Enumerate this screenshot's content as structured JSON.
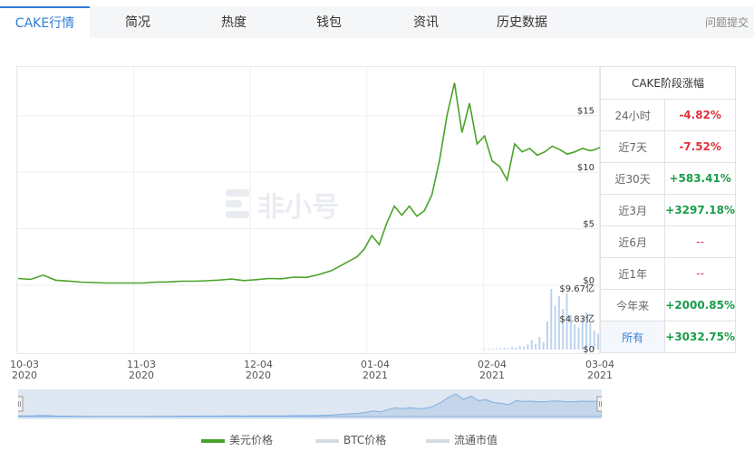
{
  "tabs": [
    {
      "label": "CAKE行情"
    },
    {
      "label": "简况"
    },
    {
      "label": "热度"
    },
    {
      "label": "钱包"
    },
    {
      "label": "资讯"
    },
    {
      "label": "历史数据"
    }
  ],
  "feedback_label": "问题提交",
  "watermark": "非小号",
  "table": {
    "title": "CAKE阶段涨幅",
    "rows": [
      {
        "label": "24小时",
        "value": "-4.82%"
      },
      {
        "label": "近7天",
        "value": "-7.52%"
      },
      {
        "label": "近30天",
        "value": "+583.41%"
      },
      {
        "label": "近3月",
        "value": "+3297.18%"
      },
      {
        "label": "近6月",
        "value": "--"
      },
      {
        "label": "近1年",
        "value": "--"
      },
      {
        "label": "今年来",
        "value": "+2000.85%"
      },
      {
        "label": "所有",
        "value": "+3032.75%"
      }
    ]
  },
  "colors": {
    "up": "#1a9c4a",
    "down": "#e0303b",
    "neutral": "#888888",
    "line": "#4aa329",
    "accent": "#2f7cd7"
  },
  "legend": [
    "美元价格",
    "BTC价格",
    "流通市值"
  ],
  "chart_data": {
    "type": "line",
    "x_ticks": [
      "10-03\n2020",
      "11-03\n2020",
      "12-04\n2020",
      "01-04\n2021",
      "02-04\n2021",
      "03-04\n2021"
    ],
    "price_axis": {
      "ticks": [
        "$0",
        "$5",
        "$10",
        "$15"
      ],
      "ylim": [
        0,
        18.5
      ]
    },
    "volume_axis": {
      "ticks": [
        "$0",
        "$4.83亿",
        "$9.67亿"
      ],
      "ylim": [
        0,
        9.67
      ]
    },
    "series": [
      {
        "name": "美元价格",
        "x_day": [
          0,
          5,
          10,
          15,
          20,
          25,
          30,
          35,
          40,
          45,
          50,
          55,
          60,
          65,
          70,
          75,
          80,
          85,
          90,
          95,
          100,
          105,
          110,
          115,
          120,
          125,
          130,
          135,
          138,
          141,
          144,
          147,
          150,
          153,
          156,
          159,
          162,
          165,
          168,
          171,
          174,
          177,
          180,
          183,
          186,
          189,
          192,
          195,
          198,
          201,
          204,
          207,
          210,
          213,
          216,
          219,
          222,
          225,
          228,
          230,
          232
        ],
        "values": [
          0.6,
          0.52,
          0.9,
          0.45,
          0.38,
          0.28,
          0.24,
          0.2,
          0.2,
          0.2,
          0.2,
          0.28,
          0.3,
          0.36,
          0.36,
          0.4,
          0.46,
          0.55,
          0.42,
          0.5,
          0.6,
          0.58,
          0.72,
          0.7,
          0.95,
          1.3,
          1.9,
          2.5,
          3.2,
          4.4,
          3.6,
          5.5,
          7.0,
          6.2,
          7.0,
          6.1,
          6.6,
          8.0,
          11.0,
          15.0,
          17.9,
          13.5,
          16.1,
          12.5,
          13.2,
          11.0,
          10.5,
          9.3,
          12.5,
          11.8,
          12.1,
          11.5,
          11.8,
          12.3,
          12.0,
          11.6,
          11.8,
          12.1,
          11.9,
          12.0,
          12.2
        ]
      }
    ],
    "volume": [
      0.1,
      0.15,
      0.1,
      0.2,
      0.2,
      0.3,
      0.2,
      0.4,
      0.3,
      0.6,
      0.5,
      0.8,
      1.5,
      0.9,
      2.0,
      1.2,
      4.5,
      9.67,
      7.0,
      8.5,
      6.5,
      9.0,
      5.5,
      4.0,
      3.5,
      5.0,
      6.0,
      4.2,
      3.0,
      2.5
    ]
  }
}
